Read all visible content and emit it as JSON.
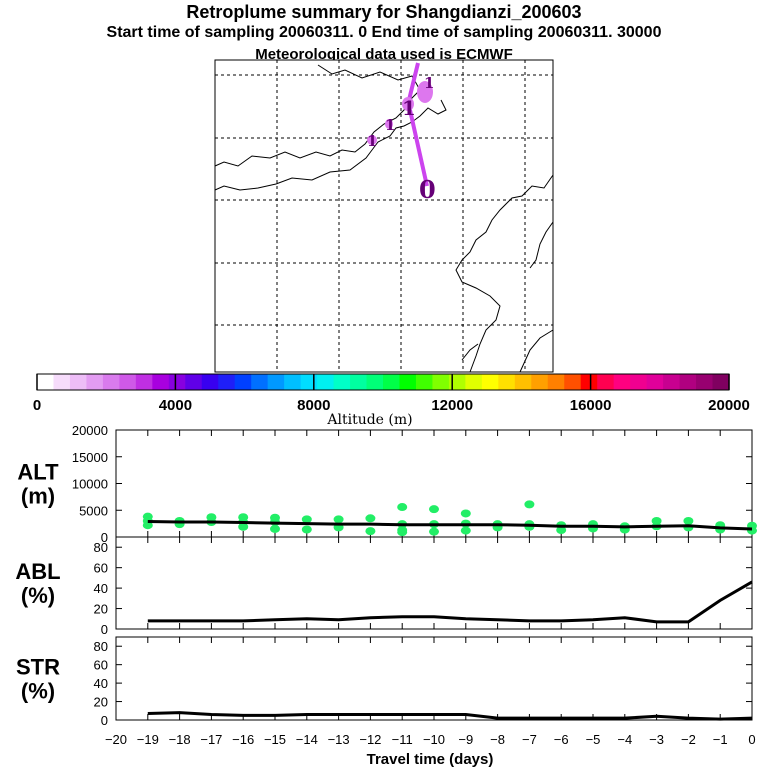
{
  "header": {
    "title": "Retroplume summary for Shangdianzi_200603",
    "subtitle": "Start time of sampling 20060311.     0     End time of sampling 20060311. 30000",
    "met": "Meteorological data used is ECMWF"
  },
  "map": {
    "plume_labels": [
      "1",
      "1",
      "1",
      "1",
      "0"
    ],
    "colors": {
      "track": "#cc44ee",
      "blob": "#dd77ee",
      "dark": "#660077"
    }
  },
  "colorbar": {
    "title": "Altitude (m)",
    "ticks": [
      "0",
      "4000",
      "8000",
      "12000",
      "16000",
      "20000"
    ],
    "colors": [
      "#ffffff",
      "#f6dcfb",
      "#edbdf7",
      "#e39cf2",
      "#d97bed",
      "#cf59e8",
      "#c02fe3",
      "#a800df",
      "#8800e0",
      "#6000e8",
      "#3800f0",
      "#1f1ff8",
      "#0040ff",
      "#0070ff",
      "#0099ff",
      "#00bfff",
      "#00ddff",
      "#00f0f0",
      "#00ffc8",
      "#00ffa0",
      "#00ff78",
      "#00ff48",
      "#00ff00",
      "#40ff00",
      "#80ff00",
      "#b0ff00",
      "#e0ff00",
      "#ffff00",
      "#ffe000",
      "#ffc000",
      "#ffa000",
      "#ff8000",
      "#ff5000",
      "#ff0000",
      "#ff0050",
      "#ff0080",
      "#f00090",
      "#e0009a",
      "#c80090",
      "#b00080",
      "#980070",
      "#800060"
    ]
  },
  "chart_data": [
    {
      "type": "scatter",
      "label_line1": "ALT",
      "label_line2": "(m)",
      "ylim": [
        0,
        20000
      ],
      "yticks": [
        "0",
        "5000",
        "10000",
        "15000",
        "20000"
      ],
      "x": [
        -19,
        -18,
        -17,
        -16,
        -15,
        -14,
        -13,
        -12,
        -11,
        -10,
        -9,
        -8,
        -7,
        -6,
        -5,
        -4,
        -3,
        -2,
        -1,
        0
      ],
      "mean_altitude": [
        2900,
        2800,
        2800,
        2700,
        2600,
        2500,
        2400,
        2400,
        2300,
        2300,
        2300,
        2300,
        2200,
        2000,
        2000,
        1900,
        2000,
        2100,
        1700,
        1500
      ],
      "points": [
        {
          "x": -19,
          "y": 3800
        },
        {
          "x": -19,
          "y": 3000
        },
        {
          "x": -19,
          "y": 2200
        },
        {
          "x": -18,
          "y": 3000
        },
        {
          "x": -18,
          "y": 2400
        },
        {
          "x": -17,
          "y": 3700
        },
        {
          "x": -17,
          "y": 2800
        },
        {
          "x": -16,
          "y": 3700
        },
        {
          "x": -16,
          "y": 2800
        },
        {
          "x": -16,
          "y": 1900
        },
        {
          "x": -15,
          "y": 3600
        },
        {
          "x": -15,
          "y": 2800
        },
        {
          "x": -15,
          "y": 1500
        },
        {
          "x": -14,
          "y": 3300
        },
        {
          "x": -14,
          "y": 1400
        },
        {
          "x": -13,
          "y": 3300
        },
        {
          "x": -13,
          "y": 1800
        },
        {
          "x": -12,
          "y": 3500
        },
        {
          "x": -12,
          "y": 1100
        },
        {
          "x": -11,
          "y": 5600
        },
        {
          "x": -11,
          "y": 2400
        },
        {
          "x": -11,
          "y": 1300
        },
        {
          "x": -11,
          "y": 900
        },
        {
          "x": -10,
          "y": 5200
        },
        {
          "x": -10,
          "y": 2400
        },
        {
          "x": -10,
          "y": 1000
        },
        {
          "x": -9,
          "y": 4400
        },
        {
          "x": -9,
          "y": 2500
        },
        {
          "x": -9,
          "y": 1200
        },
        {
          "x": -8,
          "y": 2400
        },
        {
          "x": -8,
          "y": 1800
        },
        {
          "x": -7,
          "y": 6100
        },
        {
          "x": -7,
          "y": 2400
        },
        {
          "x": -7,
          "y": 1900
        },
        {
          "x": -6,
          "y": 2200
        },
        {
          "x": -6,
          "y": 1300
        },
        {
          "x": -5,
          "y": 2400
        },
        {
          "x": -5,
          "y": 1600
        },
        {
          "x": -4,
          "y": 2000
        },
        {
          "x": -4,
          "y": 1400
        },
        {
          "x": -3,
          "y": 3000
        },
        {
          "x": -3,
          "y": 2000
        },
        {
          "x": -2,
          "y": 3000
        },
        {
          "x": -2,
          "y": 1800
        },
        {
          "x": -1,
          "y": 2200
        },
        {
          "x": -1,
          "y": 1400
        },
        {
          "x": 0,
          "y": 2100
        },
        {
          "x": 0,
          "y": 1200
        }
      ],
      "point_color": "#22ee66"
    },
    {
      "type": "line",
      "label_line1": "ABL",
      "label_line2": "(%)",
      "ylim": [
        0,
        90
      ],
      "yticks": [
        "0",
        "20",
        "40",
        "60",
        "80"
      ],
      "x": [
        -19,
        -18,
        -17,
        -16,
        -15,
        -14,
        -13,
        -12,
        -11,
        -10,
        -9,
        -8,
        -7,
        -6,
        -5,
        -4,
        -3,
        -2,
        -1,
        0
      ],
      "values": [
        8,
        8,
        8,
        8,
        9,
        10,
        9,
        11,
        12,
        12,
        10,
        9,
        8,
        8,
        9,
        11,
        7,
        7,
        28,
        46
      ]
    },
    {
      "type": "line",
      "label_line1": "STR",
      "label_line2": "(%)",
      "ylim": [
        0,
        90
      ],
      "yticks": [
        "0",
        "20",
        "40",
        "60",
        "80"
      ],
      "x": [
        -19,
        -18,
        -17,
        -16,
        -15,
        -14,
        -13,
        -12,
        -11,
        -10,
        -9,
        -8,
        -7,
        -6,
        -5,
        -4,
        -3,
        -2,
        -1,
        0
      ],
      "values": [
        7,
        8,
        6,
        5,
        5,
        6,
        6,
        6,
        6,
        6,
        6,
        2,
        2,
        2,
        2,
        2,
        4,
        2,
        1,
        2
      ],
      "xlabel": "Travel time (days)",
      "xticks": [
        "−20",
        "−19",
        "−18",
        "−17",
        "−16",
        "−15",
        "−14",
        "−13",
        "−12",
        "−11",
        "−10",
        "−9",
        "−8",
        "−7",
        "−6",
        "−5",
        "−4",
        "−3",
        "−2",
        "−1",
        "0"
      ]
    }
  ]
}
